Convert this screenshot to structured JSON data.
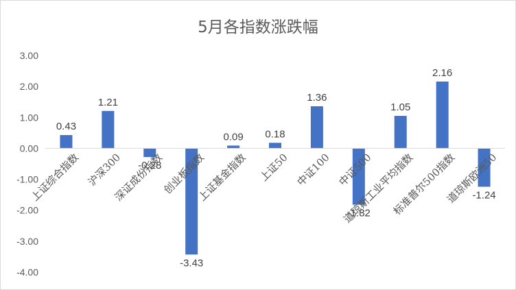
{
  "chart_data": {
    "type": "bar",
    "title": "5月各指数涨跌幅",
    "categories": [
      "上证综合指数",
      "沪深300",
      "深证成份指数",
      "创业板指数",
      "上证基金指数",
      "上证50",
      "中证100",
      "中证500",
      "道琼斯工业平均指数",
      "标准普尔500指数",
      "道琼斯欧洲50"
    ],
    "values": [
      0.43,
      1.21,
      -0.28,
      -3.43,
      0.09,
      0.18,
      1.36,
      -1.82,
      1.05,
      2.16,
      -1.24
    ],
    "value_labels": [
      "0.43",
      "1.21",
      "-0.28",
      "-3.43",
      "0.09",
      "0.18",
      "1.36",
      "-1.82",
      "1.05",
      "2.16",
      "-1.24"
    ],
    "yticks": [
      "3.00",
      "2.00",
      "1.00",
      "0.00",
      "-1.00",
      "-2.00",
      "-3.00",
      "-4.00"
    ],
    "ylim": [
      -4,
      3
    ],
    "grid": false,
    "bar_color": "#4472c4",
    "xlabel": "",
    "ylabel": ""
  }
}
